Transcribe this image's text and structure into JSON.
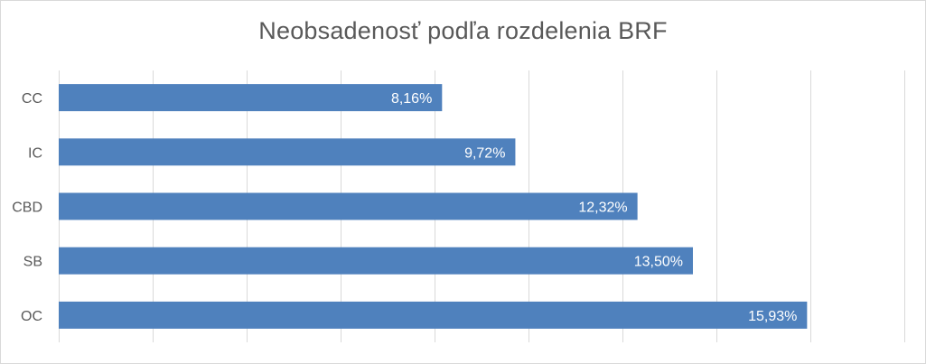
{
  "chart_data": {
    "type": "bar",
    "orientation": "horizontal",
    "title": "Neobsadenosť podľa rozdelenia BRF",
    "categories": [
      "CC",
      "IC",
      "CBD",
      "SB",
      "OC"
    ],
    "values": [
      8.16,
      9.72,
      12.32,
      13.5,
      15.93
    ],
    "data_labels": [
      "8,16%",
      "9,72%",
      "12,32%",
      "13,50%",
      "15,93%"
    ],
    "xlim": [
      0,
      18
    ],
    "x_gridlines": true,
    "x_tick_labels_visible": false,
    "legend": "none",
    "bar_color": "#4f81bd",
    "gridline_color": "#d9d9d9"
  }
}
